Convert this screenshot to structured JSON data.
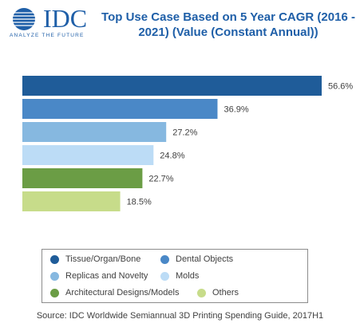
{
  "logo": {
    "text": "IDC",
    "tagline": "ANALYZE THE FUTURE"
  },
  "title": "Top Use Case Based on 5 Year CAGR (2016 - 2021) (Value (Constant Annual))",
  "colors": {
    "tissue": "#1f5c99",
    "dental": "#4a88c7",
    "replicas": "#86b8e0",
    "molds": "#bcdcf6",
    "architectural": "#6b9d45",
    "others": "#c7dc8a",
    "title": "#1f5fa8"
  },
  "chart_data": {
    "type": "bar",
    "orientation": "horizontal",
    "title": "Top Use Case Based on 5 Year CAGR (2016 - 2021) (Value (Constant Annual))",
    "categories": [
      "Tissue/Organ/Bone",
      "Dental Objects",
      "Replicas and Novelty",
      "Molds",
      "Architectural Designs/Models",
      "Others"
    ],
    "values": [
      56.6,
      36.9,
      27.2,
      24.8,
      22.7,
      18.5
    ],
    "value_labels": [
      "56.6%",
      "36.9%",
      "27.2%",
      "24.8%",
      "22.7%",
      "18.5%"
    ],
    "unit": "%",
    "xlim": [
      0,
      56.6
    ],
    "legend_position": "bottom",
    "grid": false
  },
  "legend": [
    {
      "label": "Tissue/Organ/Bone",
      "color": "#1f5c99"
    },
    {
      "label": "Dental Objects",
      "color": "#4a88c7"
    },
    {
      "label": "Replicas and Novelty",
      "color": "#86b8e0"
    },
    {
      "label": "Molds",
      "color": "#bcdcf6"
    },
    {
      "label": "Architectural Designs/Models",
      "color": "#6b9d45"
    },
    {
      "label": "Others",
      "color": "#c7dc8a"
    }
  ],
  "source": "Source: IDC Worldwide Semiannual 3D Printing Spending Guide, 2017H1"
}
